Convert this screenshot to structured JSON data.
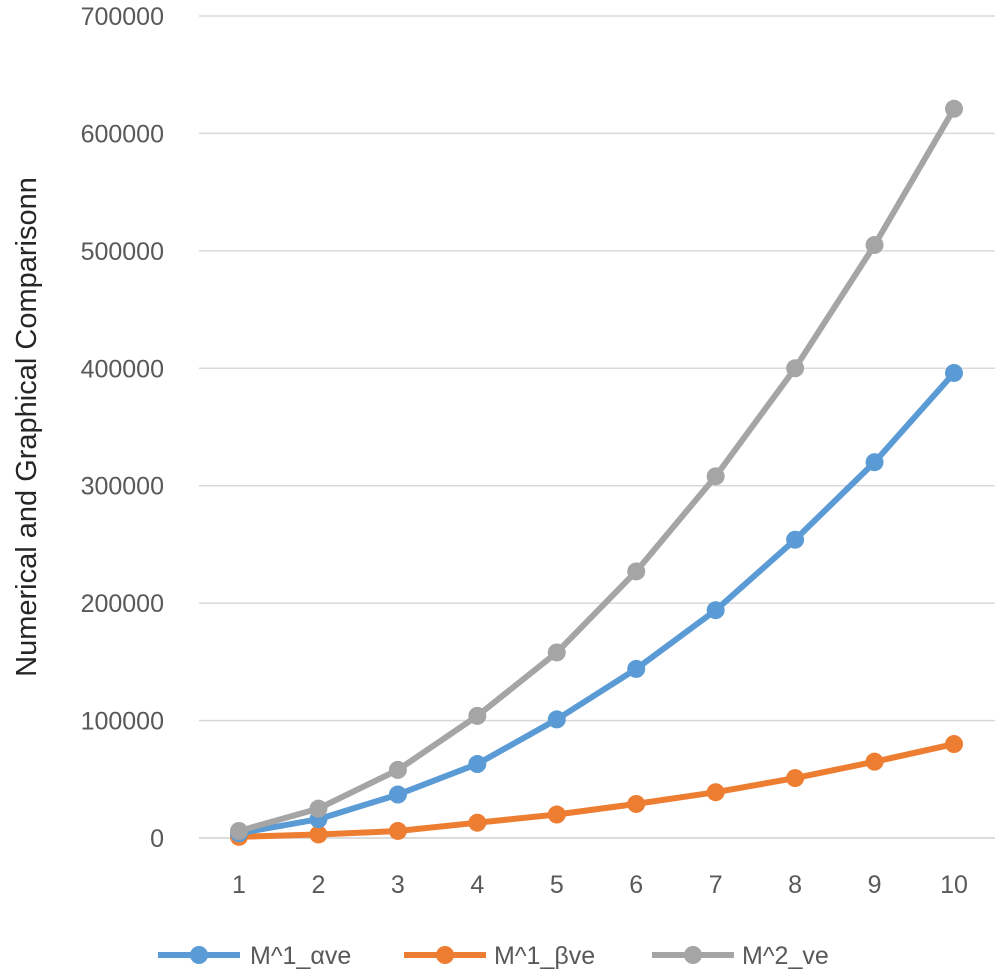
{
  "chart_data": {
    "type": "line",
    "title": "",
    "xlabel": "",
    "ylabel": "Numerical and Graphical Comparisonn",
    "x": [
      "1",
      "2",
      "3",
      "4",
      "5",
      "6",
      "7",
      "8",
      "9",
      "10"
    ],
    "ylim": [
      0,
      700000
    ],
    "yticks": [
      "0",
      "100000",
      "200000",
      "300000",
      "400000",
      "500000",
      "600000",
      "700000"
    ],
    "grid": true,
    "legend_position": "bottom",
    "series": [
      {
        "name": "M^1_αve",
        "color": "#5B9BD5",
        "values": [
          4000,
          16000,
          37000,
          63000,
          101000,
          144000,
          194000,
          254000,
          320000,
          396000
        ]
      },
      {
        "name": "M^1_βve",
        "color": "#ED7D31",
        "values": [
          1000,
          3000,
          6000,
          13000,
          20000,
          29000,
          39000,
          51000,
          65000,
          80000
        ]
      },
      {
        "name": "M^2_ve",
        "color": "#A5A5A5",
        "values": [
          6000,
          25000,
          58000,
          104000,
          158000,
          227000,
          308000,
          400000,
          505000,
          621000
        ]
      }
    ]
  }
}
